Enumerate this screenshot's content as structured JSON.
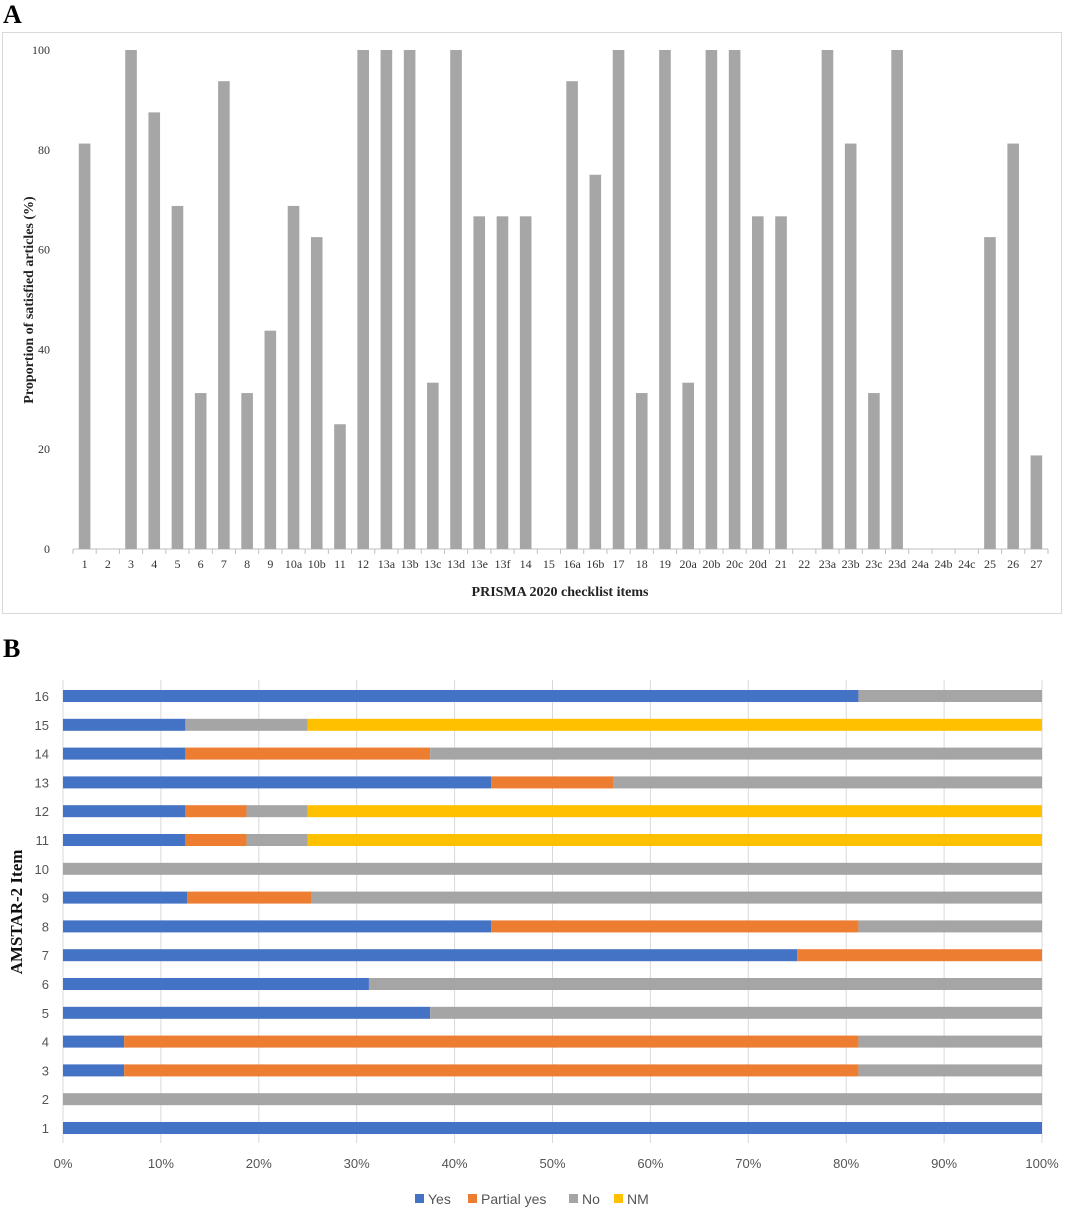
{
  "panels": {
    "a_label": "A",
    "b_label": "B"
  },
  "chart_data": [
    {
      "type": "bar",
      "title": "",
      "xlabel": "PRISMA 2020 checklist items",
      "ylabel": "Proportion of satisfied articles (%)",
      "ylim": [
        0,
        100
      ],
      "yticks": [
        0,
        20,
        40,
        60,
        80,
        100
      ],
      "grid": false,
      "categories": [
        "1",
        "2",
        "3",
        "4",
        "5",
        "6",
        "7",
        "8",
        "9",
        "10a",
        "10b",
        "11",
        "12",
        "13a",
        "13b",
        "13c",
        "13d",
        "13e",
        "13f",
        "14",
        "15",
        "16a",
        "16b",
        "17",
        "18",
        "19",
        "20a",
        "20b",
        "20c",
        "20d",
        "21",
        "22",
        "23a",
        "23b",
        "23c",
        "23d",
        "24a",
        "24b",
        "24c",
        "25",
        "26",
        "27"
      ],
      "values": [
        81.25,
        0,
        100,
        87.5,
        68.75,
        31.25,
        93.75,
        31.25,
        43.75,
        68.75,
        62.5,
        25,
        100,
        100,
        100,
        33.33,
        100,
        66.67,
        66.67,
        66.67,
        0,
        93.75,
        75,
        100,
        31.25,
        100,
        33.33,
        100,
        100,
        66.67,
        66.67,
        0,
        100,
        81.25,
        31.25,
        100,
        0,
        0,
        0,
        62.5,
        81.25,
        18.75
      ],
      "color": "#a6a6a6"
    },
    {
      "type": "bar",
      "orientation": "horizontal",
      "stacked": "percent",
      "title": "",
      "xlabel": "",
      "ylabel": "AMSTAR-2 Item",
      "xlim": [
        0,
        100
      ],
      "xticks": [
        "0%",
        "10%",
        "20%",
        "30%",
        "40%",
        "50%",
        "60%",
        "70%",
        "80%",
        "90%",
        "100%"
      ],
      "grid": true,
      "legend_position": "bottom",
      "categories": [
        "1",
        "2",
        "3",
        "4",
        "5",
        "6",
        "7",
        "8",
        "9",
        "10",
        "11",
        "12",
        "13",
        "14",
        "15",
        "16"
      ],
      "series": [
        {
          "name": "Yes",
          "color": "#4472c4",
          "values": [
            100,
            0,
            6.25,
            6.25,
            37.5,
            31.25,
            75,
            43.75,
            12.7,
            0,
            12.5,
            12.5,
            43.75,
            12.5,
            12.5,
            81.25
          ]
        },
        {
          "name": "Partial yes",
          "color": "#ed7d31",
          "values": [
            0,
            0,
            75,
            75,
            0,
            0,
            25,
            37.5,
            12.7,
            0,
            6.25,
            6.25,
            12.5,
            25,
            0,
            0
          ]
        },
        {
          "name": "No",
          "color": "#a5a5a5",
          "values": [
            0,
            100,
            18.75,
            18.75,
            62.5,
            68.75,
            0,
            18.75,
            74.6,
            100,
            6.25,
            6.25,
            43.75,
            62.5,
            12.5,
            18.75
          ]
        },
        {
          "name": "NM",
          "color": "#ffc000",
          "values": [
            0,
            0,
            0,
            0,
            0,
            0,
            0,
            0,
            0,
            0,
            75,
            75,
            0,
            0,
            75,
            0
          ]
        }
      ]
    }
  ]
}
